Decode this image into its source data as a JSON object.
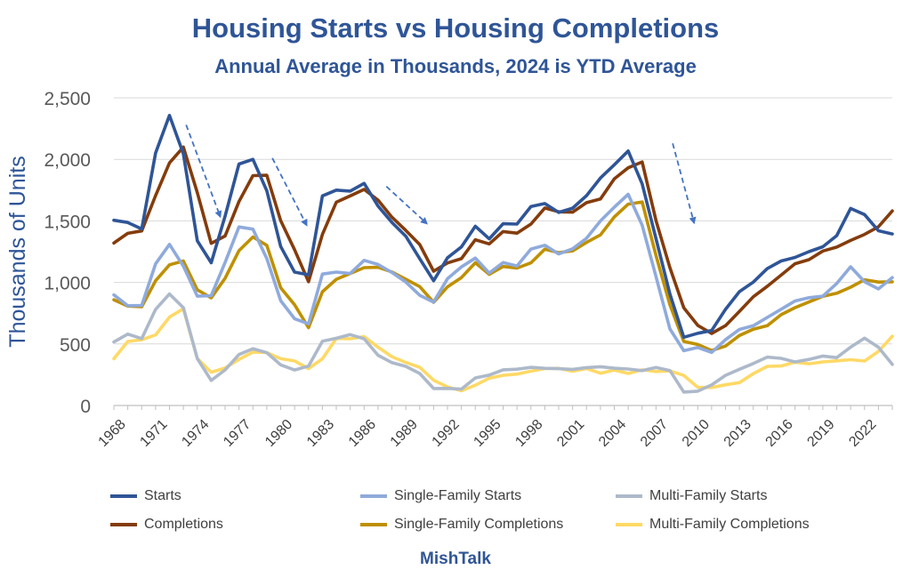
{
  "header": {
    "title": "Housing Starts vs Housing Completions",
    "subtitle": "Annual Average in Thousands, 2024 is YTD Average"
  },
  "footer": {
    "source": "MishTalk"
  },
  "chart_data": {
    "type": "line",
    "ylabel": "Thousands of Units",
    "ylim": [
      0,
      2500
    ],
    "yticks": [
      "0",
      "500",
      "1,000",
      "1,500",
      "2,000",
      "2,500"
    ],
    "x": [
      1968,
      1969,
      1970,
      1971,
      1972,
      1973,
      1974,
      1975,
      1976,
      1977,
      1978,
      1979,
      1980,
      1981,
      1982,
      1983,
      1984,
      1985,
      1986,
      1987,
      1988,
      1989,
      1990,
      1991,
      1992,
      1993,
      1994,
      1995,
      1996,
      1997,
      1998,
      1999,
      2000,
      2001,
      2002,
      2003,
      2004,
      2005,
      2006,
      2007,
      2008,
      2009,
      2010,
      2011,
      2012,
      2013,
      2014,
      2015,
      2016,
      2017,
      2018,
      2019,
      2020,
      2021,
      2022,
      2023,
      2024
    ],
    "xticks": [
      "1968",
      "1971",
      "1974",
      "1977",
      "1980",
      "1983",
      "1986",
      "1989",
      "1992",
      "1995",
      "1998",
      "2001",
      "2004",
      "2007",
      "2010",
      "2013",
      "2016",
      "2019",
      "2022"
    ],
    "grid": true,
    "legend_position": "bottom",
    "series": [
      {
        "name": "Starts",
        "color": "#2f5597",
        "values": [
          1505,
          1487,
          1434,
          2052,
          2357,
          2045,
          1338,
          1160,
          1538,
          1962,
          2000,
          1745,
          1292,
          1084,
          1062,
          1703,
          1750,
          1742,
          1805,
          1621,
          1488,
          1376,
          1193,
          1014,
          1200,
          1288,
          1457,
          1354,
          1477,
          1474,
          1617,
          1641,
          1569,
          1603,
          1705,
          1848,
          1956,
          2068,
          1801,
          1355,
          906,
          554,
          587,
          609,
          781,
          925,
          1003,
          1112,
          1174,
          1203,
          1250,
          1290,
          1380,
          1601,
          1551,
          1420,
          1394
        ]
      },
      {
        "name": "Completions",
        "color": "#843c0c",
        "values": [
          1320,
          1399,
          1418,
          1706,
          1971,
          2100,
          1729,
          1317,
          1377,
          1657,
          1868,
          1871,
          1502,
          1266,
          1006,
          1390,
          1652,
          1703,
          1756,
          1669,
          1530,
          1423,
          1308,
          1091,
          1158,
          1193,
          1347,
          1313,
          1413,
          1400,
          1474,
          1605,
          1574,
          1571,
          1648,
          1678,
          1842,
          1931,
          1979,
          1502,
          1120,
          794,
          651,
          585,
          649,
          764,
          884,
          968,
          1059,
          1152,
          1185,
          1255,
          1287,
          1341,
          1390,
          1452,
          1581
        ]
      },
      {
        "name": "Single-Family Starts",
        "color": "#8faadc",
        "values": [
          899,
          811,
          813,
          1151,
          1309,
          1132,
          888,
          892,
          1162,
          1451,
          1433,
          1194,
          852,
          705,
          663,
          1068,
          1084,
          1072,
          1179,
          1146,
          1081,
          1003,
          895,
          840,
          1030,
          1126,
          1198,
          1076,
          1161,
          1134,
          1271,
          1302,
          1231,
          1273,
          1359,
          1499,
          1611,
          1716,
          1465,
          1046,
          622,
          445,
          471,
          431,
          535,
          618,
          648,
          715,
          782,
          849,
          876,
          888,
          991,
          1127,
          1005,
          947,
          1040
        ]
      },
      {
        "name": "Single-Family Completions",
        "color": "#bf9000",
        "values": [
          859,
          808,
          802,
          1014,
          1143,
          1174,
          940,
          875,
          1034,
          1258,
          1369,
          1301,
          957,
          819,
          632,
          924,
          1025,
          1072,
          1120,
          1123,
          1085,
          1026,
          966,
          838,
          964,
          1039,
          1160,
          1066,
          1129,
          1116,
          1159,
          1270,
          1242,
          1256,
          1325,
          1386,
          1532,
          1636,
          1654,
          1218,
          819,
          520,
          496,
          447,
          483,
          569,
          620,
          648,
          738,
          795,
          841,
          887,
          912,
          961,
          1022,
          1003,
          1005
        ]
      },
      {
        "name": "Multi-Family Starts",
        "color": "#adb9ca",
        "values": [
          516,
          580,
          543,
          781,
          906,
          795,
          381,
          204,
          289,
          414,
          462,
          429,
          330,
          288,
          320,
          522,
          546,
          576,
          542,
          408,
          348,
          318,
          260,
          138,
          139,
          133,
          224,
          247,
          290,
          295,
          310,
          302,
          299,
          293,
          308,
          315,
          303,
          296,
          283,
          309,
          284,
          109,
          116,
          167,
          245,
          294,
          341,
          393,
          383,
          354,
          374,
          402,
          389,
          474,
          547,
          473,
          334
        ]
      },
      {
        "name": "Multi-Family Completions",
        "color": "#ffd966",
        "values": [
          380,
          520,
          534,
          574,
          718,
          786,
          382,
          270,
          305,
          374,
          434,
          430,
          380,
          362,
          300,
          379,
          545,
          542,
          560,
          474,
          397,
          350,
          310,
          205,
          151,
          120,
          165,
          222,
          245,
          255,
          279,
          300,
          302,
          278,
          300,
          262,
          288,
          260,
          290,
          276,
          281,
          244,
          148,
          146,
          168,
          186,
          259,
          318,
          321,
          352,
          339,
          354,
          363,
          372,
          361,
          439,
          563
        ]
      }
    ],
    "annotations": [
      {
        "type": "trend-arrow",
        "x_from": 1973.2,
        "y_from": 2280,
        "x_to": 1975.6,
        "y_to": 1550
      },
      {
        "type": "trend-arrow",
        "x_from": 1979.4,
        "y_from": 2010,
        "x_to": 1981.8,
        "y_to": 1480
      },
      {
        "type": "trend-arrow",
        "x_from": 1987.6,
        "y_from": 1780,
        "x_to": 1990.4,
        "y_to": 1490
      },
      {
        "type": "trend-arrow",
        "x_from": 2008.2,
        "y_from": 2130,
        "x_to": 2009.7,
        "y_to": 1500
      }
    ]
  }
}
